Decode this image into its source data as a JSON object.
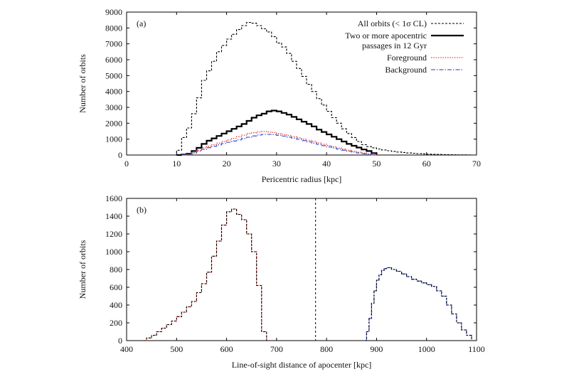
{
  "chart_data": [
    {
      "type": "line",
      "panel_label": "(a)",
      "xlabel": "Pericentric radius [kpc]",
      "ylabel": "Number of orbits",
      "xlim": [
        0,
        70
      ],
      "ylim": [
        0,
        9000
      ],
      "xticks": [
        0,
        10,
        20,
        30,
        40,
        50,
        60,
        70
      ],
      "yticks": [
        0,
        1000,
        2000,
        3000,
        4000,
        5000,
        6000,
        7000,
        8000,
        9000
      ],
      "grid": false,
      "legend_position": "top-right",
      "legend": [
        "All orbits (< 1σ CL)",
        "Two or more apocentric",
        "passages in 12 Gyr",
        "Foreground",
        "Background"
      ],
      "series": [
        {
          "name": "All orbits (< 1σ CL)",
          "color": "#000000",
          "style": "dashed-step",
          "x": [
            9,
            10,
            11,
            12,
            13,
            14,
            15,
            16,
            17,
            18,
            19,
            20,
            21,
            22,
            23,
            24,
            25,
            26,
            27,
            28,
            29,
            30,
            31,
            32,
            33,
            34,
            35,
            36,
            37,
            38,
            39,
            40,
            41,
            42,
            43,
            44,
            45,
            46,
            47,
            48,
            49,
            50,
            51,
            52,
            53,
            54,
            55,
            56,
            57,
            58,
            59,
            60,
            61,
            62,
            63,
            64,
            65,
            66,
            67,
            68,
            69
          ],
          "values": [
            0,
            300,
            1100,
            1700,
            2600,
            3600,
            4700,
            5300,
            5900,
            6500,
            6900,
            7300,
            7600,
            7900,
            8150,
            8350,
            8300,
            8150,
            7950,
            7750,
            7450,
            7050,
            6800,
            6400,
            5900,
            5450,
            4950,
            4450,
            4000,
            3550,
            3150,
            2750,
            2350,
            2000,
            1650,
            1350,
            1100,
            850,
            650,
            530,
            450,
            380,
            320,
            270,
            230,
            190,
            160,
            130,
            110,
            90,
            70,
            55,
            45,
            35,
            25,
            20,
            15,
            10,
            8,
            5,
            3
          ]
        },
        {
          "name": "Two or more apocentric passages in 12 Gyr",
          "color": "#000000",
          "style": "solid-step",
          "x": [
            10,
            11,
            12,
            13,
            14,
            15,
            16,
            17,
            18,
            19,
            20,
            21,
            22,
            23,
            24,
            25,
            26,
            27,
            28,
            29,
            30,
            31,
            32,
            33,
            34,
            35,
            36,
            37,
            38,
            39,
            40,
            41,
            42,
            43,
            44,
            45,
            46,
            47,
            48,
            49,
            50
          ],
          "values": [
            0,
            30,
            80,
            250,
            450,
            700,
            900,
            1050,
            1200,
            1350,
            1500,
            1650,
            1800,
            1950,
            2150,
            2350,
            2500,
            2600,
            2750,
            2800,
            2750,
            2650,
            2550,
            2400,
            2250,
            2100,
            1950,
            1800,
            1600,
            1450,
            1300,
            1150,
            1000,
            850,
            700,
            580,
            470,
            350,
            250,
            120,
            0
          ]
        },
        {
          "name": "Foreground",
          "color": "#e8413a",
          "style": "dotted-step",
          "x": [
            11,
            12,
            13,
            14,
            15,
            16,
            17,
            18,
            19,
            20,
            21,
            22,
            23,
            24,
            25,
            26,
            27,
            28,
            29,
            30,
            31,
            32,
            33,
            34,
            35,
            36,
            37,
            38,
            39,
            40,
            41,
            42,
            43,
            44,
            45,
            46,
            47,
            48,
            49,
            50
          ],
          "values": [
            0,
            40,
            150,
            300,
            450,
            550,
            650,
            750,
            850,
            950,
            1050,
            1150,
            1250,
            1350,
            1400,
            1450,
            1480,
            1450,
            1420,
            1350,
            1300,
            1230,
            1150,
            1080,
            1000,
            920,
            850,
            760,
            680,
            600,
            520,
            440,
            370,
            300,
            240,
            180,
            120,
            70,
            20,
            0
          ]
        },
        {
          "name": "Background",
          "color": "#4a5fd8",
          "style": "dashdot-step",
          "x": [
            11,
            12,
            13,
            14,
            15,
            16,
            17,
            18,
            19,
            20,
            21,
            22,
            23,
            24,
            25,
            26,
            27,
            28,
            29,
            30,
            31,
            32,
            33,
            34,
            35,
            36,
            37,
            38,
            39,
            40,
            41,
            42,
            43,
            44,
            45,
            46,
            47,
            48,
            49,
            50
          ],
          "values": [
            0,
            30,
            120,
            240,
            360,
            460,
            550,
            640,
            720,
            800,
            880,
            960,
            1040,
            1120,
            1200,
            1260,
            1300,
            1300,
            1280,
            1240,
            1190,
            1130,
            1060,
            990,
            910,
            830,
            750,
            670,
            590,
            510,
            440,
            370,
            300,
            240,
            180,
            130,
            80,
            40,
            10,
            0
          ]
        }
      ]
    },
    {
      "type": "line",
      "panel_label": "(b)",
      "xlabel": "Line-of-sight distance of apocenter [kpc]",
      "ylabel": "Number of orbits",
      "xlim": [
        400,
        1100
      ],
      "ylim": [
        0,
        1600
      ],
      "xticks": [
        400,
        500,
        600,
        700,
        800,
        900,
        1000,
        1100
      ],
      "yticks": [
        0,
        200,
        400,
        600,
        800,
        1000,
        1200,
        1400,
        1600
      ],
      "grid": false,
      "reference_line_x": 778,
      "series": [
        {
          "name": "Foreground",
          "color": "#e8413a",
          "style": "dotted-step",
          "x": [
            435,
            440,
            450,
            460,
            470,
            480,
            490,
            500,
            510,
            520,
            530,
            540,
            550,
            560,
            570,
            580,
            590,
            600,
            610,
            620,
            630,
            640,
            650,
            660,
            670,
            680
          ],
          "values": [
            0,
            30,
            60,
            100,
            140,
            180,
            220,
            270,
            320,
            380,
            440,
            540,
            640,
            770,
            950,
            1120,
            1300,
            1450,
            1480,
            1420,
            1360,
            1200,
            1000,
            620,
            100,
            0
          ]
        },
        {
          "name": "Background",
          "color": "#4a5fd8",
          "style": "dashdot-step",
          "x": [
            875,
            880,
            885,
            890,
            895,
            900,
            905,
            910,
            915,
            920,
            930,
            940,
            950,
            960,
            970,
            980,
            990,
            1000,
            1010,
            1020,
            1030,
            1040,
            1050,
            1060,
            1070,
            1080,
            1090
          ],
          "values": [
            0,
            100,
            250,
            420,
            560,
            680,
            740,
            790,
            810,
            820,
            800,
            780,
            750,
            720,
            690,
            670,
            650,
            630,
            610,
            560,
            500,
            400,
            300,
            200,
            120,
            60,
            0
          ]
        },
        {
          "name": "All orbits (< 1σ CL)",
          "color": "#000000",
          "style": "dashed-step",
          "x": [
            435,
            440,
            450,
            460,
            470,
            480,
            490,
            500,
            510,
            520,
            530,
            540,
            550,
            560,
            570,
            580,
            590,
            600,
            610,
            620,
            630,
            640,
            650,
            660,
            670,
            680,
            875,
            880,
            885,
            890,
            895,
            900,
            905,
            910,
            915,
            920,
            930,
            940,
            950,
            960,
            970,
            980,
            990,
            1000,
            1010,
            1020,
            1030,
            1040,
            1050,
            1060,
            1070,
            1080,
            1090
          ],
          "values": [
            0,
            30,
            60,
            100,
            140,
            180,
            220,
            270,
            320,
            380,
            440,
            540,
            640,
            770,
            950,
            1120,
            1300,
            1450,
            1480,
            1420,
            1360,
            1200,
            1000,
            620,
            100,
            0,
            0,
            100,
            250,
            420,
            560,
            680,
            740,
            790,
            810,
            820,
            800,
            780,
            750,
            720,
            690,
            670,
            650,
            630,
            610,
            560,
            500,
            400,
            300,
            200,
            120,
            60,
            0
          ]
        }
      ]
    }
  ]
}
